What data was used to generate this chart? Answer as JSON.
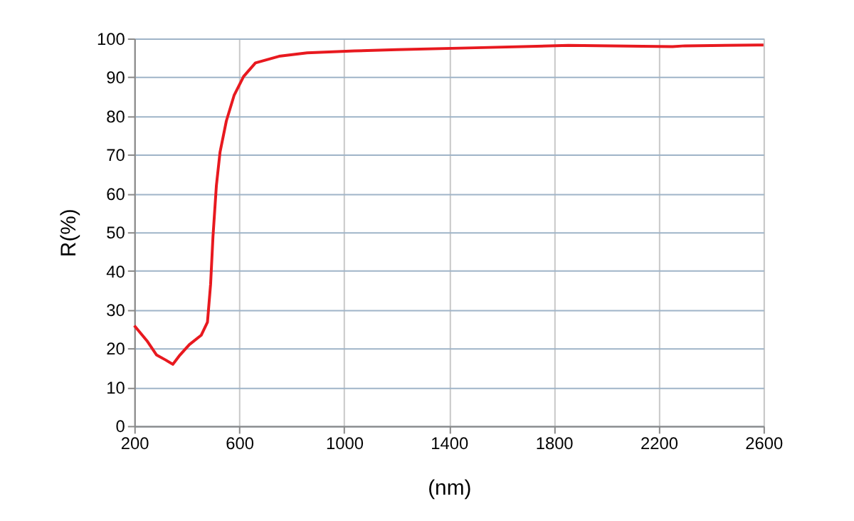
{
  "chart_data": {
    "type": "line",
    "xlabel": "(nm)",
    "ylabel": "R(%)",
    "xlim": [
      200,
      2600
    ],
    "xticks": [
      200,
      600,
      1000,
      1400,
      1800,
      2200,
      2600
    ],
    "ylim": [
      0,
      100
    ],
    "yticks": [
      0,
      10,
      20,
      30,
      40,
      50,
      60,
      70,
      80,
      90,
      100
    ],
    "grid": true,
    "marker": "none",
    "line_style": "solid",
    "series": [
      {
        "color": "#e8191f",
        "x": [
          200,
          248,
          285,
          320,
          347,
          374,
          410,
          455,
          479,
          491,
          500,
          513,
          527,
          551,
          581,
          617,
          662,
          752,
          859,
          1040,
          1202,
          1500,
          1856,
          2253,
          2300,
          2577,
          2600
        ],
        "values": [
          25.9,
          22,
          18.3,
          17,
          15.9,
          18.3,
          21,
          23.4,
          26.8,
          36.6,
          48.8,
          62,
          70.7,
          78.7,
          85.4,
          90.2,
          93.7,
          95.4,
          96.3,
          96.8,
          97.1,
          97.6,
          98.2,
          97.9,
          98.1,
          98.3,
          98.3
        ]
      }
    ]
  }
}
